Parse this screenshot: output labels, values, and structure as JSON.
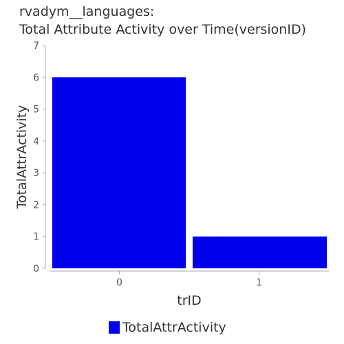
{
  "chart_data": {
    "type": "bar",
    "title_line1": "rvadym__languages:",
    "title_line2": "Total Attribute Activity over Time(versionID)",
    "xlabel": "trID",
    "ylabel": "TotalAttrActivity",
    "categories": [
      "0",
      "1"
    ],
    "series": [
      {
        "name": "TotalAttrActivity",
        "values": [
          6,
          1
        ],
        "color": "#0000ee"
      }
    ],
    "ylim": [
      0,
      7
    ],
    "yticks": [
      "0",
      "1",
      "2",
      "3",
      "4",
      "5",
      "6",
      "7"
    ],
    "grid": false,
    "legend_position": "bottom-center"
  }
}
